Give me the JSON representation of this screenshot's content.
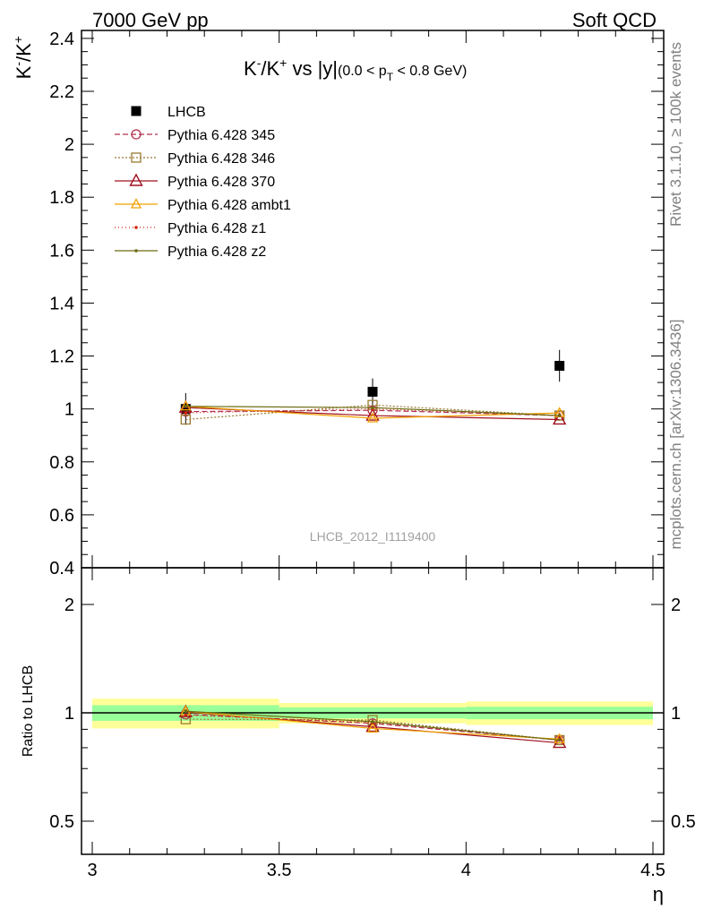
{
  "header": {
    "left": "7000 GeV pp",
    "right": "Soft QCD"
  },
  "side_labels": {
    "top": "Rivet 3.1.10, ≥ 100k events",
    "bottom": "mcplots.cern.ch [arXiv:1306.3436]"
  },
  "watermark": "LHCB_2012_I1119400",
  "colors": {
    "lhcb": "#000000",
    "p345": "#b03050",
    "p346": "#9a7a30",
    "p370": "#a01020",
    "ambt1": "#f0a000",
    "z1": "#d02010",
    "z2": "#6b6b10",
    "band_inner": "#99ff99",
    "band_outer": "#ffff99"
  },
  "chart_data": [
    {
      "type": "line",
      "title_parts": {
        "lhs": "K",
        "lhs_sup": "-",
        "sep": "/K",
        "sep_sup": "+",
        "vs": " vs |y|",
        "range_open": "(0.0 < p",
        "range_sub": "T",
        "range_close": " < 0.8 GeV)"
      },
      "ylabel_parts": {
        "a": "K",
        "a_sup": "-",
        "b": "/K",
        "b_sup": "+"
      },
      "xlim": [
        3.0,
        4.5
      ],
      "ylim": [
        0.4,
        2.43
      ],
      "yticks": [
        "0.4",
        "0.6",
        "0.8",
        "1",
        "1.2",
        "1.4",
        "1.6",
        "1.8",
        "2",
        "2.2",
        "2.4"
      ],
      "legend_position": "top-left",
      "x": [
        3.25,
        3.75,
        4.25
      ],
      "series": [
        {
          "key": "lhcb",
          "name": "LHCB",
          "values": [
            1.0,
            1.065,
            1.163
          ],
          "errors": [
            0.06,
            0.05,
            0.06
          ]
        },
        {
          "key": "p345",
          "name": "Pythia 6.428 345",
          "values": [
            0.99,
            0.995,
            0.975
          ]
        },
        {
          "key": "p346",
          "name": "Pythia 6.428 346",
          "values": [
            0.96,
            1.015,
            0.975
          ]
        },
        {
          "key": "p370",
          "name": "Pythia 6.428 370",
          "values": [
            1.005,
            0.975,
            0.96
          ]
        },
        {
          "key": "ambt1",
          "name": "Pythia 6.428 ambt1",
          "values": [
            1.01,
            0.965,
            0.985
          ]
        },
        {
          "key": "z1",
          "name": "Pythia 6.428 z1",
          "values": [
            0.985,
            1.0,
            0.975
          ]
        },
        {
          "key": "z2",
          "name": "Pythia 6.428 z2",
          "values": [
            1.01,
            1.005,
            0.975
          ]
        }
      ]
    },
    {
      "type": "line",
      "ylabel": "Ratio to LHCB",
      "xlabel": "η",
      "xlim": [
        3.0,
        4.5
      ],
      "ylim": [
        0.4,
        2.6
      ],
      "xticks": [
        "3",
        "3.5",
        "4",
        "4.5"
      ],
      "yticks": [
        "0.5",
        "1",
        "2"
      ],
      "band": [
        {
          "x0": 3.0,
          "x1": 3.5,
          "inner": [
            0.95,
            1.05
          ],
          "outer": [
            0.905,
            1.095
          ]
        },
        {
          "x0": 3.5,
          "x1": 4.0,
          "inner": [
            0.965,
            1.035
          ],
          "outer": [
            0.935,
            1.065
          ]
        },
        {
          "x0": 4.0,
          "x1": 4.5,
          "inner": [
            0.96,
            1.04
          ],
          "outer": [
            0.925,
            1.075
          ]
        }
      ],
      "x": [
        3.25,
        3.75,
        4.25
      ],
      "series": [
        {
          "key": "p345",
          "values": [
            0.99,
            0.935,
            0.84
          ]
        },
        {
          "key": "p346",
          "values": [
            0.96,
            0.955,
            0.84
          ]
        },
        {
          "key": "p370",
          "values": [
            1.005,
            0.915,
            0.825
          ]
        },
        {
          "key": "ambt1",
          "values": [
            1.01,
            0.905,
            0.845
          ]
        },
        {
          "key": "z1",
          "values": [
            0.985,
            0.94,
            0.84
          ]
        },
        {
          "key": "z2",
          "values": [
            1.01,
            0.945,
            0.84
          ]
        }
      ]
    }
  ]
}
